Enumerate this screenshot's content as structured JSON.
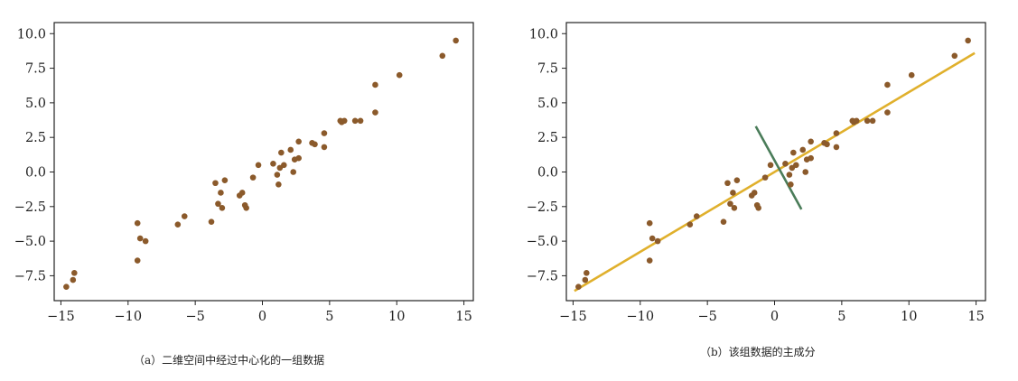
{
  "chart_data": [
    {
      "type": "scatter",
      "caption": "（a）二维空间中经过中心化的一组数据",
      "xlim": [
        -15.5,
        15.7
      ],
      "ylim": [
        -9.3,
        10.8
      ],
      "xticks": [
        -15,
        -10,
        -5,
        0,
        5,
        10,
        15
      ],
      "xtick_labels": [
        "−15",
        "−10",
        "−5",
        "0",
        "5",
        "10",
        "15"
      ],
      "yticks": [
        -7.5,
        -5.0,
        -2.5,
        0.0,
        2.5,
        5.0,
        7.5,
        10.0
      ],
      "ytick_labels": [
        "−7.5",
        "−5.0",
        "−2.5",
        "0.0",
        "2.5",
        "5.0",
        "7.5",
        "10.0"
      ],
      "grid": false,
      "point_color": "#8b5a2b",
      "points": [
        [
          -14.6,
          -8.3
        ],
        [
          -14.1,
          -7.8
        ],
        [
          -14.0,
          -7.3
        ],
        [
          -9.3,
          -6.4
        ],
        [
          -9.3,
          -3.7
        ],
        [
          -9.1,
          -4.8
        ],
        [
          -8.7,
          -5.0
        ],
        [
          -6.3,
          -3.8
        ],
        [
          -5.8,
          -3.2
        ],
        [
          -3.8,
          -3.6
        ],
        [
          -3.5,
          -0.8
        ],
        [
          -3.3,
          -2.3
        ],
        [
          -3.1,
          -1.5
        ],
        [
          -3.0,
          -2.6
        ],
        [
          -2.8,
          -0.6
        ],
        [
          -1.7,
          -1.7
        ],
        [
          -1.5,
          -1.5
        ],
        [
          -1.3,
          -2.4
        ],
        [
          -1.2,
          -2.6
        ],
        [
          -0.7,
          -0.4
        ],
        [
          -0.3,
          0.5
        ],
        [
          0.8,
          0.6
        ],
        [
          1.1,
          -0.2
        ],
        [
          1.2,
          -0.9
        ],
        [
          1.3,
          0.3
        ],
        [
          1.4,
          1.4
        ],
        [
          1.6,
          0.5
        ],
        [
          2.1,
          1.6
        ],
        [
          2.3,
          0.0
        ],
        [
          2.4,
          0.9
        ],
        [
          2.7,
          1.0
        ],
        [
          2.7,
          2.2
        ],
        [
          3.7,
          2.1
        ],
        [
          3.9,
          2.0
        ],
        [
          4.6,
          1.8
        ],
        [
          4.6,
          2.8
        ],
        [
          5.8,
          3.7
        ],
        [
          5.9,
          3.6
        ],
        [
          6.1,
          3.7
        ],
        [
          6.9,
          3.7
        ],
        [
          7.3,
          3.7
        ],
        [
          8.4,
          4.3
        ],
        [
          8.4,
          6.3
        ],
        [
          10.2,
          7.0
        ],
        [
          13.4,
          8.4
        ],
        [
          14.4,
          9.5
        ]
      ]
    },
    {
      "type": "scatter",
      "caption": "（b）该组数据的主成分",
      "xlim": [
        -15.5,
        15.7
      ],
      "ylim": [
        -9.3,
        10.8
      ],
      "xticks": [
        -15,
        -10,
        -5,
        0,
        5,
        10,
        15
      ],
      "xtick_labels": [
        "−15",
        "−10",
        "−5",
        "0",
        "5",
        "10",
        "15"
      ],
      "yticks": [
        -7.5,
        -5.0,
        -2.5,
        0.0,
        2.5,
        5.0,
        7.5,
        10.0
      ],
      "ytick_labels": [
        "−7.5",
        "−5.0",
        "−2.5",
        "0.0",
        "2.5",
        "5.0",
        "7.5",
        "10.0"
      ],
      "grid": false,
      "point_color": "#8b5a2b",
      "points": [
        [
          -14.6,
          -8.3
        ],
        [
          -14.1,
          -7.8
        ],
        [
          -14.0,
          -7.3
        ],
        [
          -9.3,
          -6.4
        ],
        [
          -9.3,
          -3.7
        ],
        [
          -9.1,
          -4.8
        ],
        [
          -8.7,
          -5.0
        ],
        [
          -6.3,
          -3.8
        ],
        [
          -5.8,
          -3.2
        ],
        [
          -3.8,
          -3.6
        ],
        [
          -3.5,
          -0.8
        ],
        [
          -3.3,
          -2.3
        ],
        [
          -3.1,
          -1.5
        ],
        [
          -3.0,
          -2.6
        ],
        [
          -2.8,
          -0.6
        ],
        [
          -1.7,
          -1.7
        ],
        [
          -1.5,
          -1.5
        ],
        [
          -1.3,
          -2.4
        ],
        [
          -1.2,
          -2.6
        ],
        [
          -0.7,
          -0.4
        ],
        [
          -0.3,
          0.5
        ],
        [
          0.8,
          0.6
        ],
        [
          1.1,
          -0.2
        ],
        [
          1.2,
          -0.9
        ],
        [
          1.3,
          0.3
        ],
        [
          1.4,
          1.4
        ],
        [
          1.6,
          0.5
        ],
        [
          2.1,
          1.6
        ],
        [
          2.3,
          0.0
        ],
        [
          2.4,
          0.9
        ],
        [
          2.7,
          1.0
        ],
        [
          2.7,
          2.2
        ],
        [
          3.7,
          2.1
        ],
        [
          3.9,
          2.0
        ],
        [
          4.6,
          1.8
        ],
        [
          4.6,
          2.8
        ],
        [
          5.8,
          3.7
        ],
        [
          5.9,
          3.6
        ],
        [
          6.1,
          3.7
        ],
        [
          6.9,
          3.7
        ],
        [
          7.3,
          3.7
        ],
        [
          8.4,
          4.3
        ],
        [
          8.4,
          6.3
        ],
        [
          10.2,
          7.0
        ],
        [
          13.4,
          8.4
        ],
        [
          14.4,
          9.5
        ]
      ],
      "lines": [
        {
          "color": "#e0b02c",
          "points": [
            [
              -14.9,
              -8.6
            ],
            [
              14.9,
              8.6
            ]
          ]
        },
        {
          "color": "#4a7c59",
          "points": [
            [
              -1.4,
              3.3
            ],
            [
              2.0,
              -2.7
            ]
          ]
        }
      ]
    }
  ]
}
